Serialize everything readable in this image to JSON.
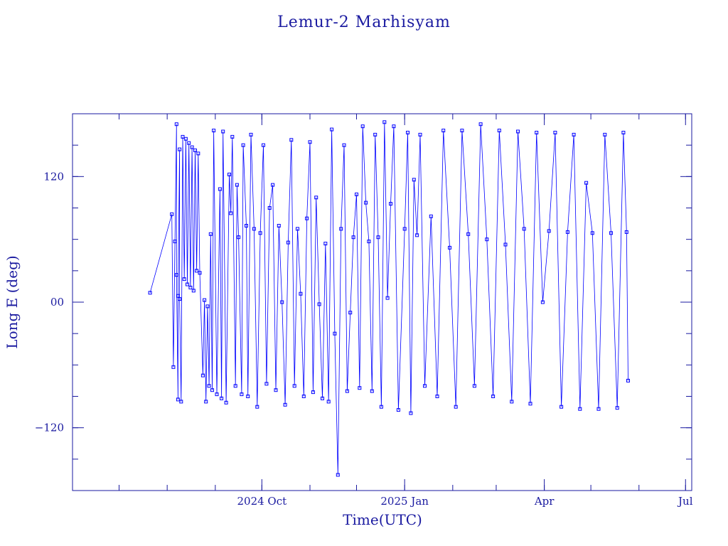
{
  "chart_data": {
    "type": "scatter",
    "title": "Lemur-2 Marhisyam",
    "xlabel": "Time(UTC)",
    "ylabel": "Long E (deg)",
    "xlim": [
      "2024-06-01",
      "2025-07-05"
    ],
    "ylim": [
      -180,
      180
    ],
    "x_ticks": [
      {
        "date": "2024-10-01",
        "label": "2024 Oct"
      },
      {
        "date": "2025-01-01",
        "label": "2025 Jan"
      },
      {
        "date": "2025-04-01",
        "label": "Apr"
      },
      {
        "date": "2025-07-01",
        "label": "Jul"
      }
    ],
    "y_ticks": [
      {
        "value": 120,
        "label": "120"
      },
      {
        "value": 0,
        "label": "00"
      },
      {
        "value": -120,
        "label": "−120"
      }
    ],
    "line_style": "connected points with square markers",
    "color": "#0000ff",
    "grid": false,
    "series": [
      {
        "points": [
          {
            "date": "2024-07-21",
            "lon": 9
          },
          {
            "date": "2024-08-04",
            "lon": 84
          },
          {
            "date": "2024-08-05",
            "lon": -62
          },
          {
            "date": "2024-08-06",
            "lon": 58
          },
          {
            "date": "2024-08-07",
            "lon": 170
          },
          {
            "date": "2024-08-07",
            "lon": 26
          },
          {
            "date": "2024-08-08",
            "lon": -93
          },
          {
            "date": "2024-08-08",
            "lon": 6
          },
          {
            "date": "2024-08-09",
            "lon": 146
          },
          {
            "date": "2024-08-09",
            "lon": 3
          },
          {
            "date": "2024-08-10",
            "lon": -95
          },
          {
            "date": "2024-08-11",
            "lon": 158
          },
          {
            "date": "2024-08-12",
            "lon": 22
          },
          {
            "date": "2024-08-13",
            "lon": 156
          },
          {
            "date": "2024-08-14",
            "lon": 17
          },
          {
            "date": "2024-08-15",
            "lon": 152
          },
          {
            "date": "2024-08-16",
            "lon": 14
          },
          {
            "date": "2024-08-17",
            "lon": 148
          },
          {
            "date": "2024-08-18",
            "lon": 11
          },
          {
            "date": "2024-08-19",
            "lon": 145
          },
          {
            "date": "2024-08-20",
            "lon": 30
          },
          {
            "date": "2024-08-21",
            "lon": 142
          },
          {
            "date": "2024-08-22",
            "lon": 28
          },
          {
            "date": "2024-08-24",
            "lon": -70
          },
          {
            "date": "2024-08-25",
            "lon": 2
          },
          {
            "date": "2024-08-26",
            "lon": -95
          },
          {
            "date": "2024-08-27",
            "lon": -4
          },
          {
            "date": "2024-08-28",
            "lon": -80
          },
          {
            "date": "2024-08-29",
            "lon": 65
          },
          {
            "date": "2024-08-30",
            "lon": -84
          },
          {
            "date": "2024-08-31",
            "lon": 164
          },
          {
            "date": "2024-09-02",
            "lon": -88
          },
          {
            "date": "2024-09-04",
            "lon": 108
          },
          {
            "date": "2024-09-05",
            "lon": -92
          },
          {
            "date": "2024-09-06",
            "lon": 163
          },
          {
            "date": "2024-09-08",
            "lon": -96
          },
          {
            "date": "2024-09-10",
            "lon": 122
          },
          {
            "date": "2024-09-11",
            "lon": 85
          },
          {
            "date": "2024-09-12",
            "lon": 158
          },
          {
            "date": "2024-09-14",
            "lon": -80
          },
          {
            "date": "2024-09-15",
            "lon": 112
          },
          {
            "date": "2024-09-16",
            "lon": 62
          },
          {
            "date": "2024-09-18",
            "lon": -88
          },
          {
            "date": "2024-09-19",
            "lon": 150
          },
          {
            "date": "2024-09-21",
            "lon": 73
          },
          {
            "date": "2024-09-22",
            "lon": -90
          },
          {
            "date": "2024-09-24",
            "lon": 160
          },
          {
            "date": "2024-09-26",
            "lon": 70
          },
          {
            "date": "2024-09-28",
            "lon": -100
          },
          {
            "date": "2024-09-30",
            "lon": 66
          },
          {
            "date": "2024-10-02",
            "lon": 150
          },
          {
            "date": "2024-10-04",
            "lon": -78
          },
          {
            "date": "2024-10-06",
            "lon": 90
          },
          {
            "date": "2024-10-08",
            "lon": 112
          },
          {
            "date": "2024-10-10",
            "lon": -84
          },
          {
            "date": "2024-10-12",
            "lon": 73
          },
          {
            "date": "2024-10-14",
            "lon": 0
          },
          {
            "date": "2024-10-16",
            "lon": -98
          },
          {
            "date": "2024-10-18",
            "lon": 57
          },
          {
            "date": "2024-10-20",
            "lon": 155
          },
          {
            "date": "2024-10-22",
            "lon": -80
          },
          {
            "date": "2024-10-24",
            "lon": 70
          },
          {
            "date": "2024-10-26",
            "lon": 8
          },
          {
            "date": "2024-10-28",
            "lon": -90
          },
          {
            "date": "2024-10-30",
            "lon": 80
          },
          {
            "date": "2024-11-01",
            "lon": 153
          },
          {
            "date": "2024-11-03",
            "lon": -86
          },
          {
            "date": "2024-11-05",
            "lon": 100
          },
          {
            "date": "2024-11-07",
            "lon": -2
          },
          {
            "date": "2024-11-09",
            "lon": -92
          },
          {
            "date": "2024-11-11",
            "lon": 56
          },
          {
            "date": "2024-11-13",
            "lon": -95
          },
          {
            "date": "2024-11-15",
            "lon": 165
          },
          {
            "date": "2024-11-17",
            "lon": -30
          },
          {
            "date": "2024-11-19",
            "lon": -165
          },
          {
            "date": "2024-11-21",
            "lon": 70
          },
          {
            "date": "2024-11-23",
            "lon": 150
          },
          {
            "date": "2024-11-25",
            "lon": -85
          },
          {
            "date": "2024-11-27",
            "lon": -10
          },
          {
            "date": "2024-11-29",
            "lon": 62
          },
          {
            "date": "2024-12-01",
            "lon": 103
          },
          {
            "date": "2024-12-03",
            "lon": -82
          },
          {
            "date": "2024-12-05",
            "lon": 168
          },
          {
            "date": "2024-12-07",
            "lon": 95
          },
          {
            "date": "2024-12-09",
            "lon": 58
          },
          {
            "date": "2024-12-11",
            "lon": -85
          },
          {
            "date": "2024-12-13",
            "lon": 160
          },
          {
            "date": "2024-12-15",
            "lon": 62
          },
          {
            "date": "2024-12-17",
            "lon": -100
          },
          {
            "date": "2024-12-19",
            "lon": 172
          },
          {
            "date": "2024-12-21",
            "lon": 4
          },
          {
            "date": "2024-12-23",
            "lon": 94
          },
          {
            "date": "2024-12-25",
            "lon": 168
          },
          {
            "date": "2024-12-28",
            "lon": -103
          },
          {
            "date": "2025-01-01",
            "lon": 70
          },
          {
            "date": "2025-01-03",
            "lon": 162
          },
          {
            "date": "2025-01-05",
            "lon": -106
          },
          {
            "date": "2025-01-07",
            "lon": 117
          },
          {
            "date": "2025-01-09",
            "lon": 64
          },
          {
            "date": "2025-01-11",
            "lon": 160
          },
          {
            "date": "2025-01-14",
            "lon": -80
          },
          {
            "date": "2025-01-18",
            "lon": 82
          },
          {
            "date": "2025-01-22",
            "lon": -90
          },
          {
            "date": "2025-01-26",
            "lon": 164
          },
          {
            "date": "2025-01-30",
            "lon": 52
          },
          {
            "date": "2025-02-03",
            "lon": -100
          },
          {
            "date": "2025-02-07",
            "lon": 164
          },
          {
            "date": "2025-02-11",
            "lon": 65
          },
          {
            "date": "2025-02-15",
            "lon": -80
          },
          {
            "date": "2025-02-19",
            "lon": 170
          },
          {
            "date": "2025-02-23",
            "lon": 60
          },
          {
            "date": "2025-02-27",
            "lon": -90
          },
          {
            "date": "2025-03-03",
            "lon": 164
          },
          {
            "date": "2025-03-07",
            "lon": 55
          },
          {
            "date": "2025-03-11",
            "lon": -95
          },
          {
            "date": "2025-03-15",
            "lon": 163
          },
          {
            "date": "2025-03-19",
            "lon": 70
          },
          {
            "date": "2025-03-23",
            "lon": -97
          },
          {
            "date": "2025-03-27",
            "lon": 162
          },
          {
            "date": "2025-03-31",
            "lon": 0
          },
          {
            "date": "2025-04-04",
            "lon": 68
          },
          {
            "date": "2025-04-08",
            "lon": 162
          },
          {
            "date": "2025-04-12",
            "lon": -100
          },
          {
            "date": "2025-04-16",
            "lon": 67
          },
          {
            "date": "2025-04-20",
            "lon": 160
          },
          {
            "date": "2025-04-24",
            "lon": -102
          },
          {
            "date": "2025-04-28",
            "lon": 114
          },
          {
            "date": "2025-05-02",
            "lon": 66
          },
          {
            "date": "2025-05-06",
            "lon": -102
          },
          {
            "date": "2025-05-10",
            "lon": 160
          },
          {
            "date": "2025-05-14",
            "lon": 66
          },
          {
            "date": "2025-05-18",
            "lon": -101
          },
          {
            "date": "2025-05-22",
            "lon": 162
          },
          {
            "date": "2025-05-24",
            "lon": 67
          },
          {
            "date": "2025-05-25",
            "lon": -75
          }
        ]
      }
    ]
  }
}
